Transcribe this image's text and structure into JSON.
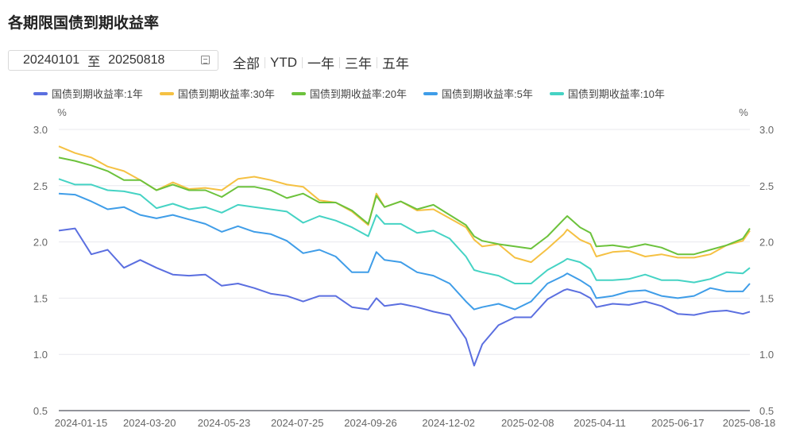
{
  "title": "各期限国债到期收益率",
  "date_range": {
    "start": "20240101",
    "separator": "至",
    "end": "20250818",
    "icon": "calendar-icon"
  },
  "range_buttons": [
    "全部",
    "YTD",
    "一年",
    "三年",
    "五年"
  ],
  "chart_data": {
    "type": "line",
    "y_unit_left": "%",
    "y_unit_right": "%",
    "ylim": [
      0.5,
      3.0
    ],
    "yticks": [
      "0.5",
      "1.0",
      "1.5",
      "2.0",
      "2.5",
      "3.0"
    ],
    "xlim": [
      "2024-01-02",
      "2025-08-18"
    ],
    "xticks": [
      "2024-01-15",
      "2024-03-20",
      "2024-05-23",
      "2024-07-25",
      "2024-09-26",
      "2024-12-02",
      "2025-02-08",
      "2025-04-11",
      "2025-06-17",
      "2025-08-18"
    ],
    "grid": true,
    "legend_position": "top",
    "x": [
      "2024-01-02",
      "2024-01-16",
      "2024-01-30",
      "2024-02-13",
      "2024-02-27",
      "2024-03-12",
      "2024-03-26",
      "2024-04-09",
      "2024-04-23",
      "2024-05-07",
      "2024-05-21",
      "2024-06-04",
      "2024-06-18",
      "2024-07-02",
      "2024-07-16",
      "2024-07-30",
      "2024-08-13",
      "2024-08-27",
      "2024-09-10",
      "2024-09-24",
      "2024-10-01",
      "2024-10-08",
      "2024-10-22",
      "2024-11-05",
      "2024-11-19",
      "2024-12-03",
      "2024-12-17",
      "2024-12-24",
      "2024-12-31",
      "2025-01-14",
      "2025-01-28",
      "2025-02-11",
      "2025-02-25",
      "2025-03-11",
      "2025-03-14",
      "2025-03-25",
      "2025-04-03",
      "2025-04-08",
      "2025-04-22",
      "2025-05-06",
      "2025-05-20",
      "2025-06-03",
      "2025-06-17",
      "2025-07-01",
      "2025-07-15",
      "2025-07-29",
      "2025-08-12",
      "2025-08-18"
    ],
    "series": [
      {
        "name": "国债到期收益率:1年",
        "color": "#5b6fe0",
        "values": [
          2.1,
          2.12,
          1.89,
          1.93,
          1.77,
          1.84,
          1.77,
          1.71,
          1.7,
          1.71,
          1.61,
          1.63,
          1.59,
          1.54,
          1.52,
          1.47,
          1.52,
          1.52,
          1.42,
          1.4,
          1.5,
          1.43,
          1.45,
          1.42,
          1.38,
          1.35,
          1.14,
          0.9,
          1.09,
          1.26,
          1.33,
          1.33,
          1.49,
          1.57,
          1.58,
          1.55,
          1.5,
          1.42,
          1.45,
          1.44,
          1.47,
          1.43,
          1.36,
          1.35,
          1.38,
          1.39,
          1.36,
          1.38
        ]
      },
      {
        "name": "国债到期收益率:30年",
        "color": "#f5c143",
        "values": [
          2.85,
          2.79,
          2.75,
          2.67,
          2.63,
          2.55,
          2.46,
          2.53,
          2.47,
          2.48,
          2.46,
          2.56,
          2.58,
          2.55,
          2.51,
          2.49,
          2.37,
          2.35,
          2.27,
          2.15,
          2.43,
          2.31,
          2.36,
          2.28,
          2.29,
          2.21,
          2.13,
          2.02,
          1.96,
          1.98,
          1.86,
          1.82,
          1.94,
          2.07,
          2.11,
          2.02,
          1.98,
          1.87,
          1.91,
          1.92,
          1.87,
          1.89,
          1.86,
          1.86,
          1.89,
          1.97,
          2.01,
          2.1
        ]
      },
      {
        "name": "国债到期收益率:20年",
        "color": "#6cc23c",
        "values": [
          2.75,
          2.72,
          2.68,
          2.63,
          2.55,
          2.55,
          2.46,
          2.51,
          2.46,
          2.46,
          2.4,
          2.49,
          2.49,
          2.46,
          2.39,
          2.43,
          2.35,
          2.35,
          2.28,
          2.16,
          2.41,
          2.31,
          2.36,
          2.29,
          2.33,
          2.24,
          2.15,
          2.05,
          2.01,
          1.98,
          1.96,
          1.94,
          2.05,
          2.2,
          2.23,
          2.13,
          2.08,
          1.96,
          1.97,
          1.95,
          1.98,
          1.95,
          1.89,
          1.89,
          1.93,
          1.97,
          2.03,
          2.12
        ]
      },
      {
        "name": "国债到期收益率:5年",
        "color": "#3f9de8",
        "values": [
          2.43,
          2.42,
          2.36,
          2.29,
          2.31,
          2.24,
          2.21,
          2.24,
          2.2,
          2.16,
          2.09,
          2.14,
          2.09,
          2.07,
          2.01,
          1.9,
          1.93,
          1.87,
          1.73,
          1.73,
          1.91,
          1.84,
          1.82,
          1.73,
          1.7,
          1.63,
          1.47,
          1.4,
          1.42,
          1.45,
          1.4,
          1.47,
          1.63,
          1.7,
          1.72,
          1.66,
          1.6,
          1.5,
          1.52,
          1.56,
          1.57,
          1.52,
          1.5,
          1.52,
          1.59,
          1.56,
          1.56,
          1.63
        ]
      },
      {
        "name": "国债到期收益率:10年",
        "color": "#45d3c4",
        "values": [
          2.56,
          2.51,
          2.51,
          2.46,
          2.45,
          2.42,
          2.3,
          2.34,
          2.29,
          2.31,
          2.26,
          2.33,
          2.31,
          2.29,
          2.27,
          2.17,
          2.23,
          2.19,
          2.13,
          2.05,
          2.24,
          2.16,
          2.16,
          2.08,
          2.1,
          2.03,
          1.87,
          1.75,
          1.73,
          1.7,
          1.63,
          1.63,
          1.75,
          1.83,
          1.85,
          1.82,
          1.76,
          1.66,
          1.66,
          1.67,
          1.71,
          1.66,
          1.66,
          1.64,
          1.67,
          1.73,
          1.72,
          1.77
        ]
      }
    ]
  }
}
